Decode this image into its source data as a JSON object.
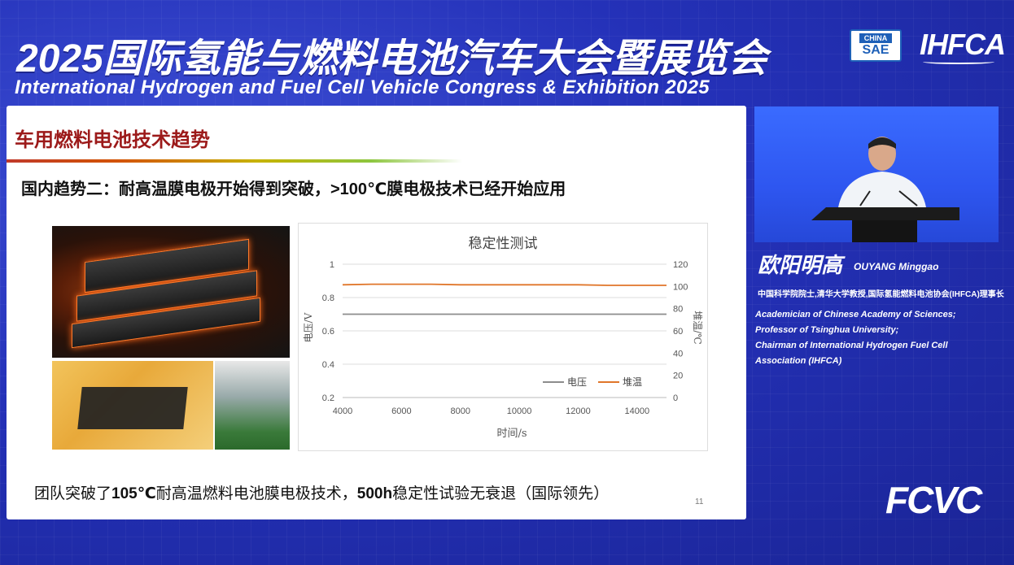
{
  "event": {
    "title_cn": "2025国际氢能与燃料电池汽车大会暨展览会",
    "title_en": "International Hydrogen and Fuel Cell Vehicle Congress & Exhibition 2025",
    "logo_sae_top": "CHINA",
    "logo_sae_bottom": "SAE",
    "logo_ihfca": "IHFCA",
    "logo_fcvc": "FCVC"
  },
  "slide": {
    "header": "车用燃料电池技术趋势",
    "subtitle": "国内趋势二：耐高温膜电极开始得到突破，>100℃膜电极技术已经开始应用",
    "footer_pre": "团队突破了",
    "footer_b1": "105℃",
    "footer_mid": "耐高温燃料电池膜电极技术，",
    "footer_b2": "500h",
    "footer_post": "稳定性试验无衰退（国际领先）",
    "page_number": "11"
  },
  "speaker": {
    "name_cn": "欧阳明高",
    "name_en": "OUYANG Minggao",
    "title_cn": "中国科学院院士,清华大学教授,国际氢能燃料电池协会(IHFCA)理事长",
    "title_en_lines": [
      "Academician of Chinese Academy of Sciences;",
      "Professor of Tsinghua University;",
      "Chairman of International Hydrogen Fuel Cell",
      "Association (IHFCA)"
    ]
  },
  "chart_data": {
    "type": "line",
    "title": "稳定性测试",
    "xlabel": "时间/s",
    "ylabel_left": "电压/V",
    "ylabel_right": "堆温/℃",
    "xlim": [
      4000,
      15000
    ],
    "xticks": [
      4000,
      6000,
      8000,
      10000,
      12000,
      14000
    ],
    "ylim_left": [
      0.2,
      1
    ],
    "yticks_left": [
      0.2,
      0.4,
      0.6,
      0.8,
      1
    ],
    "ylim_right": [
      0,
      120
    ],
    "yticks_right": [
      0,
      20,
      40,
      60,
      80,
      100,
      120
    ],
    "grid": true,
    "legend_position": "bottom-right",
    "series": [
      {
        "name": "电压",
        "axis": "left",
        "color": "#8c8c8c",
        "x": [
          4000,
          5000,
          6000,
          7000,
          8000,
          9000,
          10000,
          11000,
          12000,
          13000,
          14000,
          15000
        ],
        "y": [
          0.7,
          0.7,
          0.7,
          0.7,
          0.7,
          0.7,
          0.7,
          0.7,
          0.7,
          0.7,
          0.7,
          0.7
        ]
      },
      {
        "name": "堆温",
        "axis": "right",
        "color": "#e0762a",
        "x": [
          4000,
          5000,
          6000,
          7000,
          8000,
          9000,
          10000,
          11000,
          12000,
          13000,
          14000,
          15000
        ],
        "y": [
          101.5,
          102,
          102,
          102,
          101.5,
          101.5,
          101.5,
          101.5,
          101.5,
          101,
          101,
          101
        ]
      }
    ]
  }
}
